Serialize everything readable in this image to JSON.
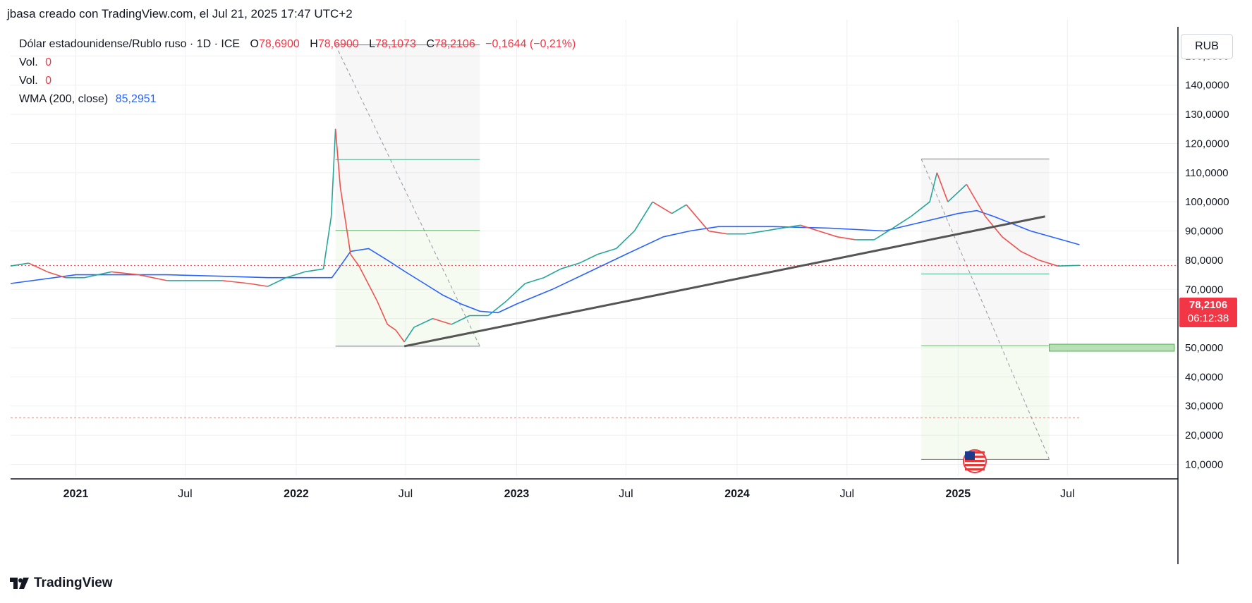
{
  "header": {
    "caption": "jbasa creado con TradingView.com, el Jul 21, 2025 17:47 UTC+2"
  },
  "legend": {
    "symbol": "Dólar estadounidense/Rublo ruso · 1D · ICE",
    "o_label": "O",
    "o_value": "78,6900",
    "h_label": "H",
    "h_value": "78,6900",
    "l_label": "L",
    "l_value": "78,1073",
    "c_label": "C",
    "c_value": "78,2106",
    "change": "−0,1644 (−0,21%)",
    "vol1_label": "Vol.",
    "vol1_value": "0",
    "vol2_label": "Vol.",
    "vol2_value": "0",
    "wma_label": "WMA (200, close)",
    "wma_value": "85,2951"
  },
  "price_scale": {
    "currency": "RUB",
    "last_price": "78,2106",
    "countdown": "06:12:38"
  },
  "footer": {
    "brand": "TradingView"
  },
  "colors": {
    "up": "#26a69a",
    "down": "#ef5350",
    "wma": "#2962ff",
    "trend": "#555555",
    "grid": "#eef0f3",
    "last_price": "#f23645",
    "fib_green": "#66bb6a",
    "fib_teal": "#4caf8f"
  },
  "chart_data": {
    "type": "line",
    "title": "",
    "xlabel": "",
    "ylabel": "",
    "ylim": [
      6,
      160
    ],
    "x_range": [
      "2020-09-15",
      "2025-12-31"
    ],
    "y_ticks": [
      "10,0000",
      "20,0000",
      "30,0000",
      "40,0000",
      "50,0000",
      "60,0000",
      "70,0000",
      "80,0000",
      "90,0000",
      "100,0000",
      "110,0000",
      "120,0000",
      "130,0000",
      "140,0000",
      "150,0000"
    ],
    "y_tick_values": [
      10,
      20,
      30,
      40,
      50,
      60,
      70,
      80,
      90,
      100,
      110,
      120,
      130,
      140,
      150
    ],
    "x_ticks": [
      {
        "date": "2021-01-01",
        "label": "2021"
      },
      {
        "date": "2021-07-01",
        "label": "Jul"
      },
      {
        "date": "2022-01-01",
        "label": "2022"
      },
      {
        "date": "2022-07-01",
        "label": "Jul"
      },
      {
        "date": "2023-01-01",
        "label": "2023"
      },
      {
        "date": "2023-07-01",
        "label": "Jul"
      },
      {
        "date": "2024-01-01",
        "label": "2024"
      },
      {
        "date": "2024-07-01",
        "label": "Jul"
      },
      {
        "date": "2025-01-01",
        "label": "2025"
      },
      {
        "date": "2025-07-01",
        "label": "Jul"
      }
    ],
    "grid": true,
    "last_price": 78.21,
    "series": [
      {
        "name": "Dólar estadounidense/Rublo ruso",
        "x": [
          "2020-09-15",
          "2020-10-15",
          "2020-11-15",
          "2020-12-15",
          "2021-01-15",
          "2021-03-01",
          "2021-04-15",
          "2021-06-01",
          "2021-07-15",
          "2021-09-01",
          "2021-10-15",
          "2021-11-15",
          "2021-12-15",
          "2022-01-15",
          "2022-02-15",
          "2022-02-28",
          "2022-03-07",
          "2022-03-15",
          "2022-04-01",
          "2022-04-15",
          "2022-05-15",
          "2022-06-01",
          "2022-06-15",
          "2022-06-29",
          "2022-07-15",
          "2022-08-15",
          "2022-09-15",
          "2022-10-15",
          "2022-11-15",
          "2022-12-15",
          "2023-01-15",
          "2023-02-15",
          "2023-03-15",
          "2023-04-15",
          "2023-05-15",
          "2023-06-15",
          "2023-07-15",
          "2023-08-14",
          "2023-09-15",
          "2023-10-09",
          "2023-11-15",
          "2023-12-15",
          "2024-01-15",
          "2024-02-15",
          "2024-03-15",
          "2024-04-15",
          "2024-05-15",
          "2024-06-15",
          "2024-07-15",
          "2024-08-15",
          "2024-09-15",
          "2024-10-15",
          "2024-11-15",
          "2024-11-27",
          "2024-12-15",
          "2025-01-15",
          "2025-02-15",
          "2025-03-15",
          "2025-04-15",
          "2025-05-15",
          "2025-06-15",
          "2025-07-21"
        ],
        "values": [
          78,
          79,
          76,
          74,
          74,
          76,
          75,
          73,
          73,
          73,
          72,
          71,
          74,
          76,
          77,
          95,
          125,
          105,
          82,
          78,
          66,
          58,
          56,
          52,
          57,
          60,
          58,
          61,
          61,
          66,
          72,
          74,
          77,
          79,
          82,
          84,
          90,
          100,
          96,
          99,
          90,
          89,
          89,
          90,
          91,
          92,
          90,
          88,
          87,
          87,
          91,
          95,
          100,
          110,
          100,
          106,
          95,
          88,
          83,
          80,
          78,
          78.21
        ]
      },
      {
        "name": "WMA (200, close)",
        "x": [
          "2020-09-15",
          "2021-01-01",
          "2021-06-01",
          "2021-09-01",
          "2021-11-15",
          "2022-02-01",
          "2022-03-01",
          "2022-03-15",
          "2022-04-01",
          "2022-05-01",
          "2022-06-01",
          "2022-07-01",
          "2022-08-01",
          "2022-09-01",
          "2022-10-01",
          "2022-11-01",
          "2022-12-01",
          "2023-01-01",
          "2023-03-01",
          "2023-05-01",
          "2023-07-01",
          "2023-09-01",
          "2023-10-15",
          "2023-12-01",
          "2024-03-01",
          "2024-06-01",
          "2024-09-01",
          "2024-11-01",
          "2025-01-01",
          "2025-02-01",
          "2025-03-01",
          "2025-05-01",
          "2025-07-21"
        ],
        "values": [
          72,
          75,
          75,
          74.5,
          74,
          74,
          74,
          78,
          83,
          84,
          80,
          76,
          72,
          68,
          65,
          62.5,
          62,
          65,
          70,
          76,
          82,
          88,
          90,
          91.5,
          91.5,
          91,
          90,
          93,
          96,
          97,
          95,
          90,
          85.3
        ]
      }
    ],
    "annotations": [
      {
        "kind": "trendline",
        "from": {
          "date": "2022-06-29",
          "value": 50.5
        },
        "to": {
          "date": "2025-05-25",
          "value": 95
        }
      },
      {
        "kind": "fib-range",
        "from_date": "2022-03-07",
        "to_date": "2022-11-01",
        "high": 153.8,
        "low": 50.5,
        "levels": [
          114.5,
          90.2
        ]
      },
      {
        "kind": "fib-range",
        "from_date": "2024-11-01",
        "to_date": "2025-06-01",
        "high": 114.7,
        "low": 11.7,
        "levels": [
          75.3,
          50.7
        ]
      },
      {
        "kind": "target-zone",
        "from_date": "2025-06-01",
        "to_date": "2025-12-25",
        "high": 51.2,
        "low": 48.8
      },
      {
        "kind": "horizontal-line",
        "value": 26
      }
    ]
  }
}
